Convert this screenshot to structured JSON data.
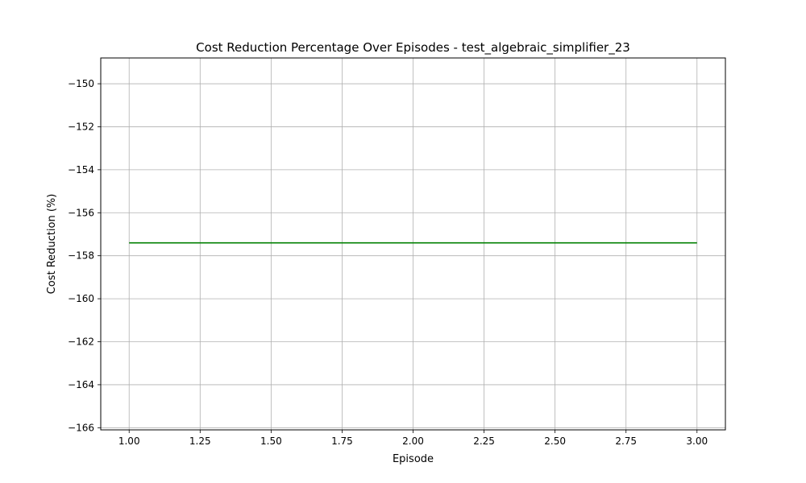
{
  "chart_data": {
    "type": "line",
    "title": "Cost Reduction Percentage Over Episodes - test_algebraic_simplifier_23",
    "xlabel": "Episode",
    "ylabel": "Cost Reduction (%)",
    "xlim": [
      0.9,
      3.1
    ],
    "ylim": [
      -166.1,
      -148.8
    ],
    "x_ticks": [
      1.0,
      1.25,
      1.5,
      1.75,
      2.0,
      2.25,
      2.5,
      2.75,
      3.0
    ],
    "x_tick_labels": [
      "1.00",
      "1.25",
      "1.50",
      "1.75",
      "2.00",
      "2.25",
      "2.50",
      "2.75",
      "3.00"
    ],
    "y_ticks": [
      -150,
      -152,
      -154,
      -156,
      -158,
      -160,
      -162,
      -164,
      -166
    ],
    "y_tick_labels": [
      "−150",
      "−152",
      "−154",
      "−156",
      "−158",
      "−160",
      "−162",
      "−164",
      "−166"
    ],
    "grid": true,
    "series": [
      {
        "color": "#008000",
        "x": [
          1,
          2,
          3
        ],
        "y": [
          -157.4,
          -157.4,
          -157.4
        ]
      }
    ]
  }
}
